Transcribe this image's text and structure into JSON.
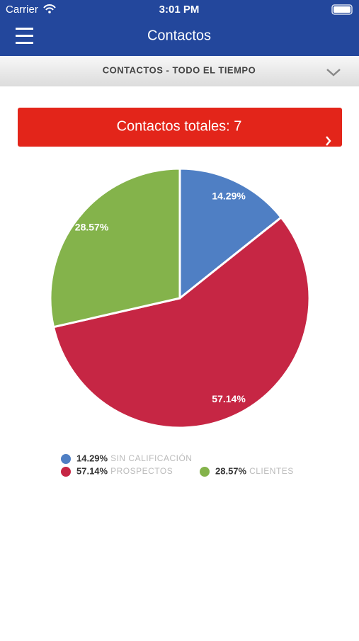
{
  "status_bar": {
    "carrier": "Carrier",
    "time": "3:01 PM"
  },
  "header": {
    "title": "Contactos"
  },
  "filter": {
    "label": "CONTACTOS - TODO EL TIEMPO"
  },
  "banner": {
    "label": "Contactos totales: 7"
  },
  "chart_data": {
    "type": "pie",
    "categories": [
      "SIN CALIFICACIÓN",
      "PROSPECTOS",
      "CLIENTES"
    ],
    "values": [
      14.29,
      57.14,
      28.57
    ],
    "value_labels": [
      "14.29%",
      "57.14%",
      "28.57%"
    ],
    "colors": [
      "#4f7fc4",
      "#c62644",
      "#84b34b"
    ]
  }
}
